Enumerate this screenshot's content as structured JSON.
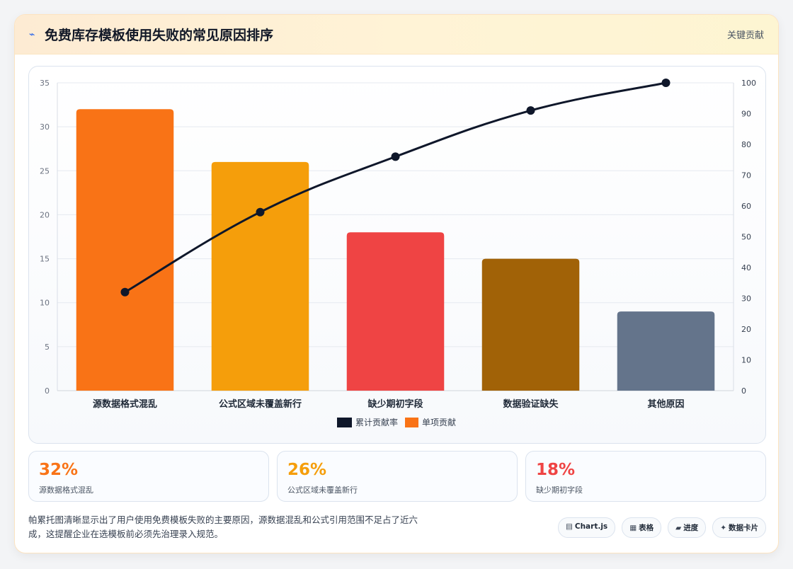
{
  "header": {
    "title": "免费库存模板使用失败的常见原因排序",
    "badge": "关键贡献",
    "icon": "lightning-icon"
  },
  "chart_data": {
    "type": "bar",
    "categories": [
      "源数据格式混乱",
      "公式区域未覆盖新行",
      "缺少期初字段",
      "数据验证缺失",
      "其他原因"
    ],
    "series": [
      {
        "name": "单项贡献",
        "type": "bar",
        "values": [
          32,
          26,
          18,
          15,
          9
        ],
        "colors": [
          "#f97316",
          "#f59e0b",
          "#ef4444",
          "#a16207",
          "#64748b"
        ]
      },
      {
        "name": "累计贡献率",
        "type": "line",
        "values": [
          32,
          58,
          76,
          91,
          100
        ],
        "color": "#0f172a",
        "axis": "right"
      }
    ],
    "ylim": [
      0,
      35
    ],
    "yticks": [
      0,
      5,
      10,
      15,
      20,
      25,
      30,
      35
    ],
    "y2lim": [
      0,
      100
    ],
    "y2ticks": [
      0,
      10,
      20,
      30,
      40,
      50,
      60,
      70,
      80,
      90,
      100
    ],
    "grid": true,
    "legend": "bottom"
  },
  "stats": [
    {
      "value": "32%",
      "label": "源数据格式混乱",
      "color": "#f97316"
    },
    {
      "value": "26%",
      "label": "公式区域未覆盖新行",
      "color": "#f59e0b"
    },
    {
      "value": "18%",
      "label": "缺少期初字段",
      "color": "#ef4444"
    }
  ],
  "footer": {
    "insight": "帕累托图清晰显示出了用户使用免费模板失败的主要原因，源数据混乱和公式引用范围不足占了近六成，这提醒企业在选模板前必须先治理录入规范。",
    "tags": [
      {
        "icon": "▤",
        "label": "Chart.js",
        "icon_name": "chart-icon"
      },
      {
        "icon": "▦",
        "label": "表格",
        "icon_name": "table-icon"
      },
      {
        "icon": "▰",
        "label": "进度",
        "icon_name": "progress-icon"
      },
      {
        "icon": "✦",
        "label": "数据卡片",
        "icon_name": "sparkle-icon"
      }
    ]
  }
}
